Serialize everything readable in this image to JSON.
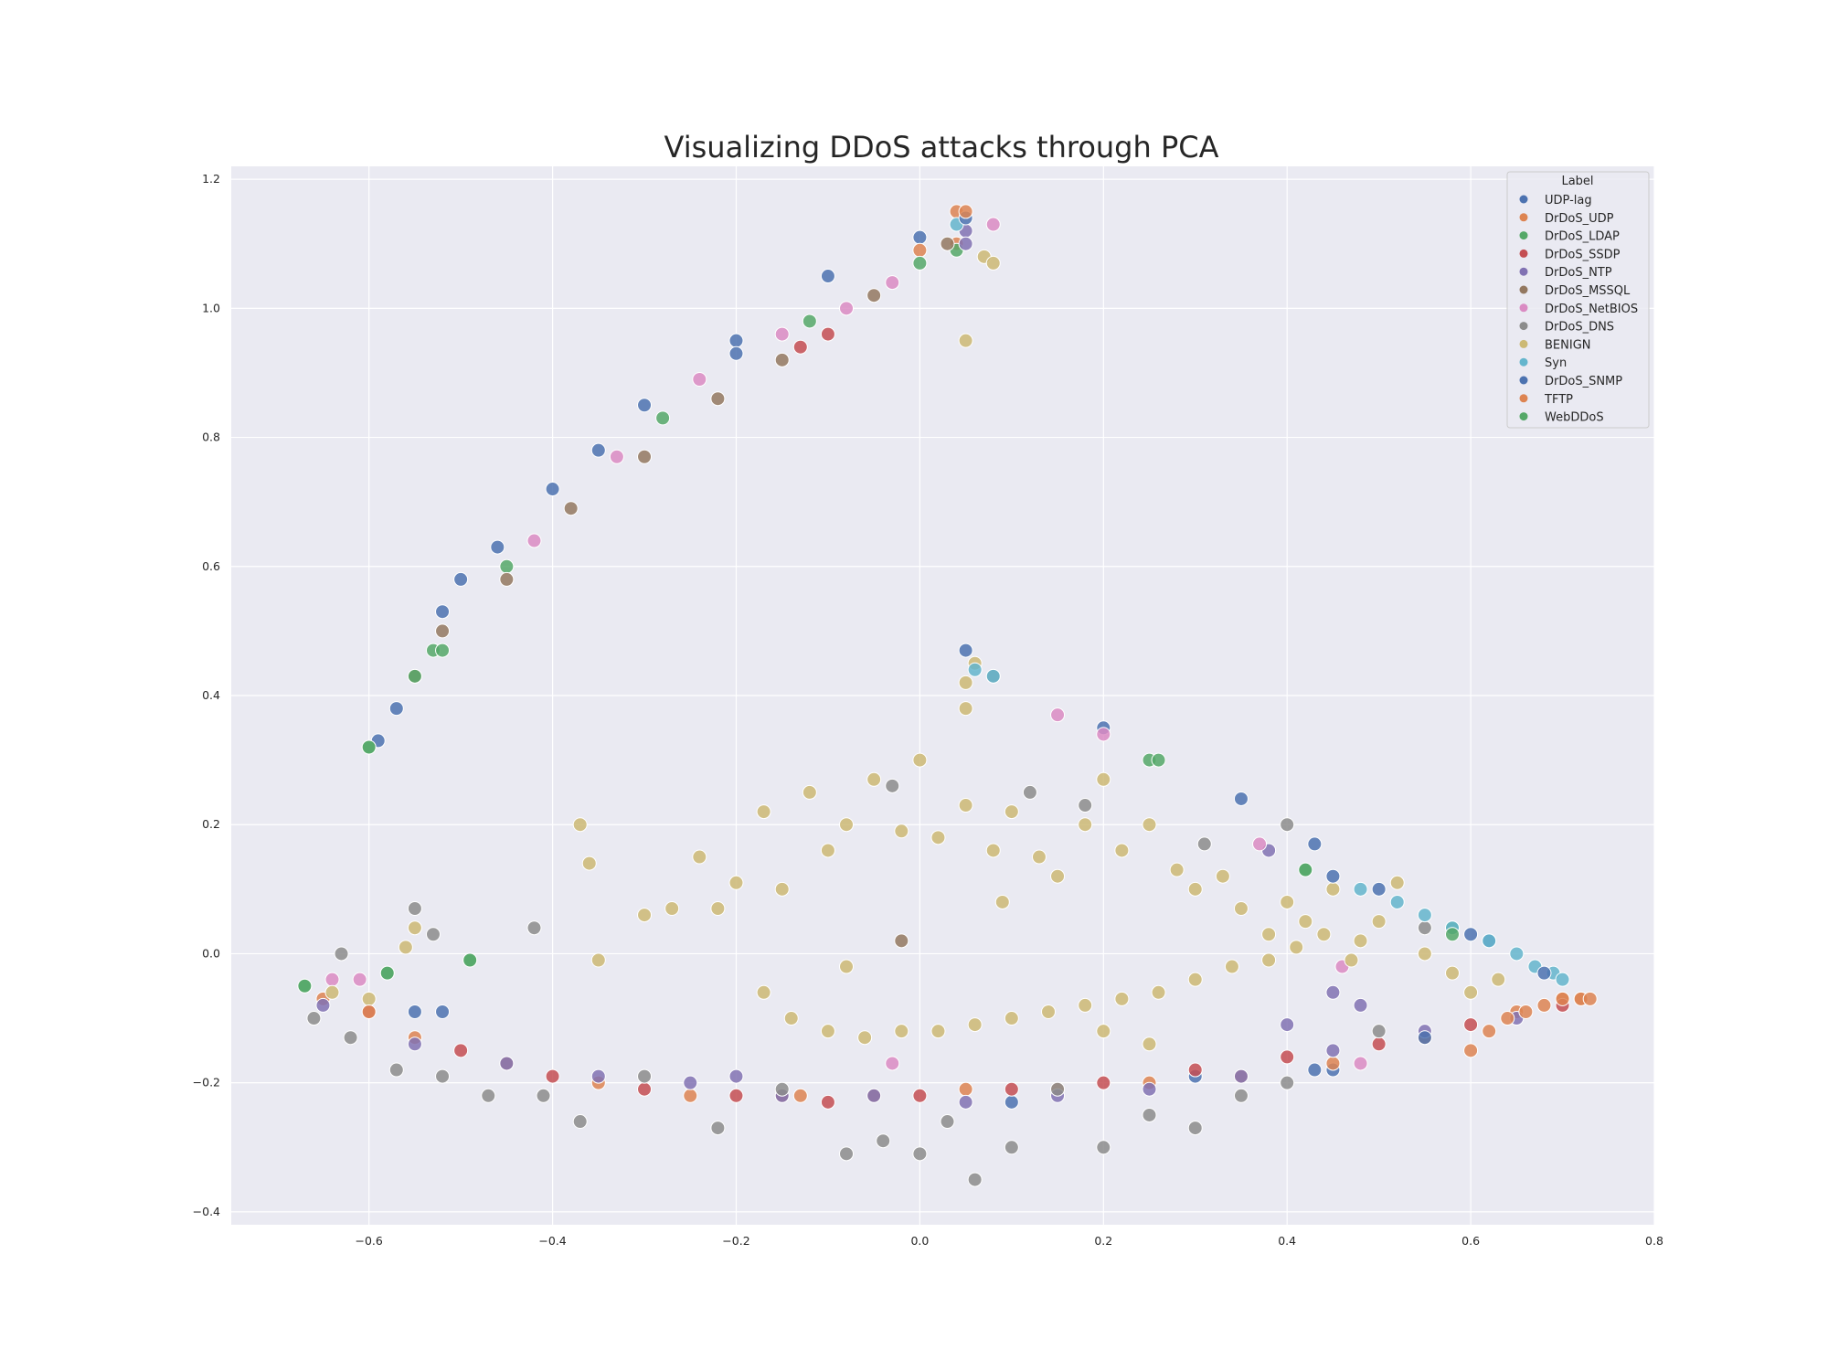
{
  "chart_data": {
    "type": "scatter",
    "title": "Visualizing DDoS attacks through PCA",
    "xlabel": "",
    "ylabel": "",
    "xlim": [
      -0.75,
      0.8
    ],
    "ylim": [
      -0.42,
      1.22
    ],
    "xticks": [
      -0.6,
      -0.4,
      -0.2,
      0.0,
      0.2,
      0.4,
      0.6,
      0.8
    ],
    "xtick_labels": [
      "−0.6",
      "−0.4",
      "−0.2",
      "0.0",
      "0.2",
      "0.4",
      "0.6",
      "0.8"
    ],
    "yticks": [
      -0.4,
      -0.2,
      0.0,
      0.2,
      0.4,
      0.6,
      0.8,
      1.0,
      1.2
    ],
    "ytick_labels": [
      "−0.4",
      "−0.2",
      "0.0",
      "0.2",
      "0.4",
      "0.6",
      "0.8",
      "1.0",
      "1.2"
    ],
    "grid": true,
    "background": "#eaeaf2",
    "legend": {
      "title": "Label",
      "placement": "top-right",
      "entries": [
        {
          "name": "UDP-lag",
          "color": "#4c72b0"
        },
        {
          "name": "DrDoS_UDP",
          "color": "#dd8452"
        },
        {
          "name": "DrDoS_LDAP",
          "color": "#55a868"
        },
        {
          "name": "DrDoS_SSDP",
          "color": "#c44e52"
        },
        {
          "name": "DrDoS_NTP",
          "color": "#8172b3"
        },
        {
          "name": "DrDoS_MSSQL",
          "color": "#937860"
        },
        {
          "name": "DrDoS_NetBIOS",
          "color": "#da8bc3"
        },
        {
          "name": "DrDoS_DNS",
          "color": "#8c8c8c"
        },
        {
          "name": "BENIGN",
          "color": "#ccb974"
        },
        {
          "name": "Syn",
          "color": "#64b5cd"
        },
        {
          "name": "DrDoS_SNMP",
          "color": "#4c72b0"
        },
        {
          "name": "TFTP",
          "color": "#dd8452"
        },
        {
          "name": "WebDDoS",
          "color": "#55a868"
        }
      ]
    },
    "series": [
      {
        "name": "UDP-lag",
        "color": "#4c72b0",
        "points": [
          [
            -0.59,
            0.33
          ],
          [
            -0.57,
            0.38
          ],
          [
            -0.52,
            0.53
          ],
          [
            -0.46,
            0.63
          ],
          [
            -0.4,
            0.72
          ],
          [
            -0.3,
            0.85
          ],
          [
            -0.2,
            0.95
          ],
          [
            -0.1,
            1.05
          ],
          [
            0.0,
            1.11
          ],
          [
            0.05,
            0.47
          ],
          [
            0.2,
            0.35
          ],
          [
            0.35,
            0.24
          ],
          [
            0.43,
            0.17
          ],
          [
            0.5,
            0.1
          ],
          [
            0.62,
            0.02
          ],
          [
            -0.55,
            -0.09
          ],
          [
            -0.52,
            -0.09
          ],
          [
            0.1,
            -0.23
          ],
          [
            0.3,
            -0.19
          ],
          [
            0.45,
            -0.18
          ]
        ]
      },
      {
        "name": "DrDoS_UDP",
        "color": "#dd8452",
        "points": [
          [
            -0.65,
            -0.07
          ],
          [
            -0.55,
            -0.13
          ],
          [
            -0.45,
            -0.17
          ],
          [
            -0.35,
            -0.2
          ],
          [
            -0.25,
            -0.22
          ],
          [
            -0.15,
            -0.22
          ],
          [
            -0.05,
            -0.22
          ],
          [
            0.05,
            -0.21
          ],
          [
            0.15,
            -0.21
          ],
          [
            0.25,
            -0.2
          ],
          [
            0.35,
            -0.19
          ],
          [
            0.45,
            -0.17
          ],
          [
            0.55,
            -0.13
          ],
          [
            0.65,
            -0.09
          ],
          [
            0.7,
            -0.07
          ],
          [
            0.72,
            -0.07
          ],
          [
            -0.13,
            -0.22
          ],
          [
            0.04,
            1.1
          ],
          [
            0.04,
            1.15
          ],
          [
            0.0,
            1.09
          ],
          [
            0.6,
            -0.15
          ]
        ]
      },
      {
        "name": "DrDoS_LDAP",
        "color": "#55a868",
        "points": [
          [
            -0.6,
            0.32
          ],
          [
            -0.53,
            0.47
          ],
          [
            -0.45,
            0.6
          ],
          [
            -0.28,
            0.83
          ],
          [
            -0.12,
            0.98
          ],
          [
            0.04,
            1.09
          ],
          [
            0.0,
            1.07
          ],
          [
            0.25,
            0.3
          ],
          [
            -0.67,
            -0.05
          ],
          [
            -0.58,
            -0.03
          ],
          [
            -0.49,
            -0.01
          ],
          [
            0.42,
            0.13
          ],
          [
            0.58,
            0.04
          ]
        ]
      },
      {
        "name": "DrDoS_SSDP",
        "color": "#c44e52",
        "points": [
          [
            -0.6,
            -0.09
          ],
          [
            -0.5,
            -0.15
          ],
          [
            -0.4,
            -0.19
          ],
          [
            -0.3,
            -0.21
          ],
          [
            -0.2,
            -0.22
          ],
          [
            -0.1,
            -0.23
          ],
          [
            0.0,
            -0.22
          ],
          [
            0.1,
            -0.21
          ],
          [
            0.2,
            -0.2
          ],
          [
            0.3,
            -0.18
          ],
          [
            0.4,
            -0.16
          ],
          [
            0.5,
            -0.14
          ],
          [
            0.6,
            -0.11
          ],
          [
            0.7,
            -0.08
          ],
          [
            -0.13,
            0.94
          ],
          [
            -0.1,
            0.96
          ]
        ]
      },
      {
        "name": "DrDoS_NTP",
        "color": "#8172b3",
        "points": [
          [
            -0.65,
            -0.08
          ],
          [
            -0.55,
            -0.14
          ],
          [
            -0.45,
            -0.17
          ],
          [
            -0.35,
            -0.19
          ],
          [
            -0.25,
            -0.2
          ],
          [
            -0.15,
            -0.22
          ],
          [
            -0.05,
            -0.22
          ],
          [
            0.05,
            -0.23
          ],
          [
            0.15,
            -0.22
          ],
          [
            0.25,
            -0.21
          ],
          [
            0.35,
            -0.19
          ],
          [
            0.45,
            -0.15
          ],
          [
            0.55,
            -0.12
          ],
          [
            0.65,
            -0.1
          ],
          [
            0.4,
            -0.11
          ],
          [
            0.48,
            -0.08
          ],
          [
            0.45,
            -0.06
          ],
          [
            0.38,
            0.16
          ],
          [
            0.05,
            1.12
          ],
          [
            0.05,
            1.1
          ],
          [
            -0.2,
            -0.19
          ]
        ]
      },
      {
        "name": "DrDoS_MSSQL",
        "color": "#937860",
        "points": [
          [
            -0.52,
            0.5
          ],
          [
            -0.45,
            0.58
          ],
          [
            -0.38,
            0.69
          ],
          [
            -0.3,
            0.77
          ],
          [
            -0.22,
            0.86
          ],
          [
            -0.15,
            0.92
          ],
          [
            -0.05,
            1.02
          ],
          [
            0.03,
            1.1
          ],
          [
            -0.02,
            0.02
          ],
          [
            -0.55,
            0.43
          ]
        ]
      },
      {
        "name": "DrDoS_NetBIOS",
        "color": "#da8bc3",
        "points": [
          [
            -0.42,
            0.64
          ],
          [
            -0.33,
            0.77
          ],
          [
            -0.24,
            0.89
          ],
          [
            -0.15,
            0.96
          ],
          [
            -0.08,
            1.0
          ],
          [
            -0.03,
            1.04
          ],
          [
            0.08,
            1.13
          ],
          [
            -0.64,
            -0.04
          ],
          [
            -0.61,
            -0.04
          ],
          [
            0.15,
            0.37
          ],
          [
            0.2,
            0.34
          ],
          [
            0.37,
            0.17
          ],
          [
            0.46,
            -0.02
          ],
          [
            -0.03,
            -0.17
          ],
          [
            0.48,
            -0.17
          ]
        ]
      },
      {
        "name": "DrDoS_DNS",
        "color": "#8c8c8c",
        "points": [
          [
            -0.66,
            -0.1
          ],
          [
            -0.62,
            -0.13
          ],
          [
            -0.57,
            -0.18
          ],
          [
            -0.52,
            -0.19
          ],
          [
            -0.47,
            -0.22
          ],
          [
            -0.41,
            -0.22
          ],
          [
            -0.37,
            -0.26
          ],
          [
            -0.3,
            -0.19
          ],
          [
            -0.22,
            -0.27
          ],
          [
            -0.15,
            -0.21
          ],
          [
            -0.08,
            -0.31
          ],
          [
            -0.04,
            -0.29
          ],
          [
            0.0,
            -0.31
          ],
          [
            0.03,
            -0.26
          ],
          [
            0.06,
            -0.35
          ],
          [
            0.1,
            -0.3
          ],
          [
            0.15,
            -0.21
          ],
          [
            0.2,
            -0.3
          ],
          [
            0.25,
            -0.25
          ],
          [
            0.3,
            -0.27
          ],
          [
            0.35,
            -0.22
          ],
          [
            0.4,
            -0.2
          ],
          [
            0.5,
            -0.12
          ],
          [
            0.55,
            0.04
          ],
          [
            -0.55,
            0.07
          ],
          [
            -0.53,
            0.03
          ],
          [
            -0.42,
            0.04
          ],
          [
            0.12,
            0.25
          ],
          [
            0.18,
            0.23
          ],
          [
            -0.03,
            0.26
          ],
          [
            0.08,
            0.43
          ],
          [
            0.31,
            0.17
          ],
          [
            0.4,
            0.2
          ],
          [
            -0.63,
            0.0
          ]
        ]
      },
      {
        "name": "BENIGN",
        "color": "#ccb974",
        "points": [
          [
            0.05,
            0.95
          ],
          [
            0.05,
            0.38
          ],
          [
            0.05,
            0.42
          ],
          [
            0.06,
            0.45
          ],
          [
            -0.37,
            0.2
          ],
          [
            -0.36,
            0.14
          ],
          [
            -0.3,
            0.06
          ],
          [
            -0.27,
            0.07
          ],
          [
            -0.24,
            0.15
          ],
          [
            -0.2,
            0.11
          ],
          [
            -0.17,
            0.22
          ],
          [
            -0.15,
            0.1
          ],
          [
            -0.12,
            0.25
          ],
          [
            -0.1,
            0.16
          ],
          [
            -0.08,
            0.2
          ],
          [
            -0.05,
            0.27
          ],
          [
            -0.02,
            0.19
          ],
          [
            0.0,
            0.3
          ],
          [
            0.02,
            0.18
          ],
          [
            0.05,
            0.23
          ],
          [
            0.08,
            0.16
          ],
          [
            0.1,
            0.22
          ],
          [
            0.13,
            0.15
          ],
          [
            0.15,
            0.12
          ],
          [
            0.18,
            0.2
          ],
          [
            0.2,
            0.27
          ],
          [
            0.22,
            0.16
          ],
          [
            0.25,
            0.2
          ],
          [
            0.28,
            0.13
          ],
          [
            0.3,
            0.1
          ],
          [
            0.33,
            0.12
          ],
          [
            0.35,
            0.07
          ],
          [
            0.38,
            0.03
          ],
          [
            0.4,
            0.08
          ],
          [
            0.42,
            0.05
          ],
          [
            0.45,
            0.1
          ],
          [
            0.48,
            0.02
          ],
          [
            0.5,
            0.05
          ],
          [
            0.52,
            0.11
          ],
          [
            0.55,
            0.0
          ],
          [
            0.58,
            -0.03
          ],
          [
            0.6,
            -0.06
          ],
          [
            0.63,
            -0.04
          ],
          [
            -0.14,
            -0.1
          ],
          [
            -0.1,
            -0.12
          ],
          [
            -0.06,
            -0.13
          ],
          [
            -0.02,
            -0.12
          ],
          [
            0.02,
            -0.12
          ],
          [
            0.06,
            -0.11
          ],
          [
            0.1,
            -0.1
          ],
          [
            0.14,
            -0.09
          ],
          [
            0.18,
            -0.08
          ],
          [
            0.22,
            -0.07
          ],
          [
            0.26,
            -0.06
          ],
          [
            0.3,
            -0.04
          ],
          [
            0.34,
            -0.02
          ],
          [
            0.38,
            -0.01
          ],
          [
            0.41,
            0.01
          ],
          [
            0.44,
            0.03
          ],
          [
            0.47,
            -0.01
          ],
          [
            -0.64,
            -0.06
          ],
          [
            -0.6,
            -0.07
          ],
          [
            -0.56,
            0.01
          ],
          [
            -0.55,
            0.04
          ],
          [
            -0.35,
            -0.01
          ],
          [
            -0.22,
            0.07
          ],
          [
            -0.17,
            -0.06
          ],
          [
            -0.08,
            -0.02
          ],
          [
            0.09,
            0.08
          ],
          [
            0.2,
            -0.12
          ],
          [
            0.25,
            -0.14
          ],
          [
            0.07,
            1.08
          ],
          [
            0.08,
            1.07
          ]
        ]
      },
      {
        "name": "Syn",
        "color": "#64b5cd",
        "points": [
          [
            0.48,
            0.1
          ],
          [
            0.52,
            0.08
          ],
          [
            0.55,
            0.06
          ],
          [
            0.58,
            0.04
          ],
          [
            0.62,
            0.02
          ],
          [
            0.65,
            0.0
          ],
          [
            0.67,
            -0.02
          ],
          [
            0.69,
            -0.03
          ],
          [
            0.7,
            -0.04
          ],
          [
            0.06,
            0.44
          ],
          [
            0.08,
            0.43
          ],
          [
            0.04,
            1.13
          ]
        ]
      },
      {
        "name": "DrDoS_SNMP",
        "color": "#4c72b0",
        "points": [
          [
            -0.5,
            0.58
          ],
          [
            -0.35,
            0.78
          ],
          [
            -0.2,
            0.93
          ],
          [
            0.05,
            1.14
          ],
          [
            0.45,
            0.12
          ],
          [
            0.6,
            0.03
          ],
          [
            0.68,
            -0.03
          ],
          [
            0.43,
            -0.18
          ],
          [
            0.55,
            -0.13
          ]
        ]
      },
      {
        "name": "TFTP",
        "color": "#dd8452",
        "points": [
          [
            0.66,
            -0.09
          ],
          [
            0.68,
            -0.08
          ],
          [
            0.7,
            -0.07
          ],
          [
            0.72,
            -0.07
          ],
          [
            0.73,
            -0.07
          ],
          [
            0.64,
            -0.1
          ],
          [
            0.62,
            -0.12
          ],
          [
            0.05,
            1.15
          ],
          [
            -0.6,
            -0.09
          ]
        ]
      },
      {
        "name": "WebDDoS",
        "color": "#55a868",
        "points": [
          [
            -0.52,
            0.47
          ],
          [
            -0.55,
            0.43
          ],
          [
            -0.6,
            0.32
          ],
          [
            0.26,
            0.3
          ],
          [
            0.42,
            0.13
          ],
          [
            0.58,
            0.03
          ],
          [
            -0.67,
            -0.05
          ],
          [
            -0.58,
            -0.03
          ],
          [
            -0.49,
            -0.01
          ]
        ]
      }
    ]
  }
}
